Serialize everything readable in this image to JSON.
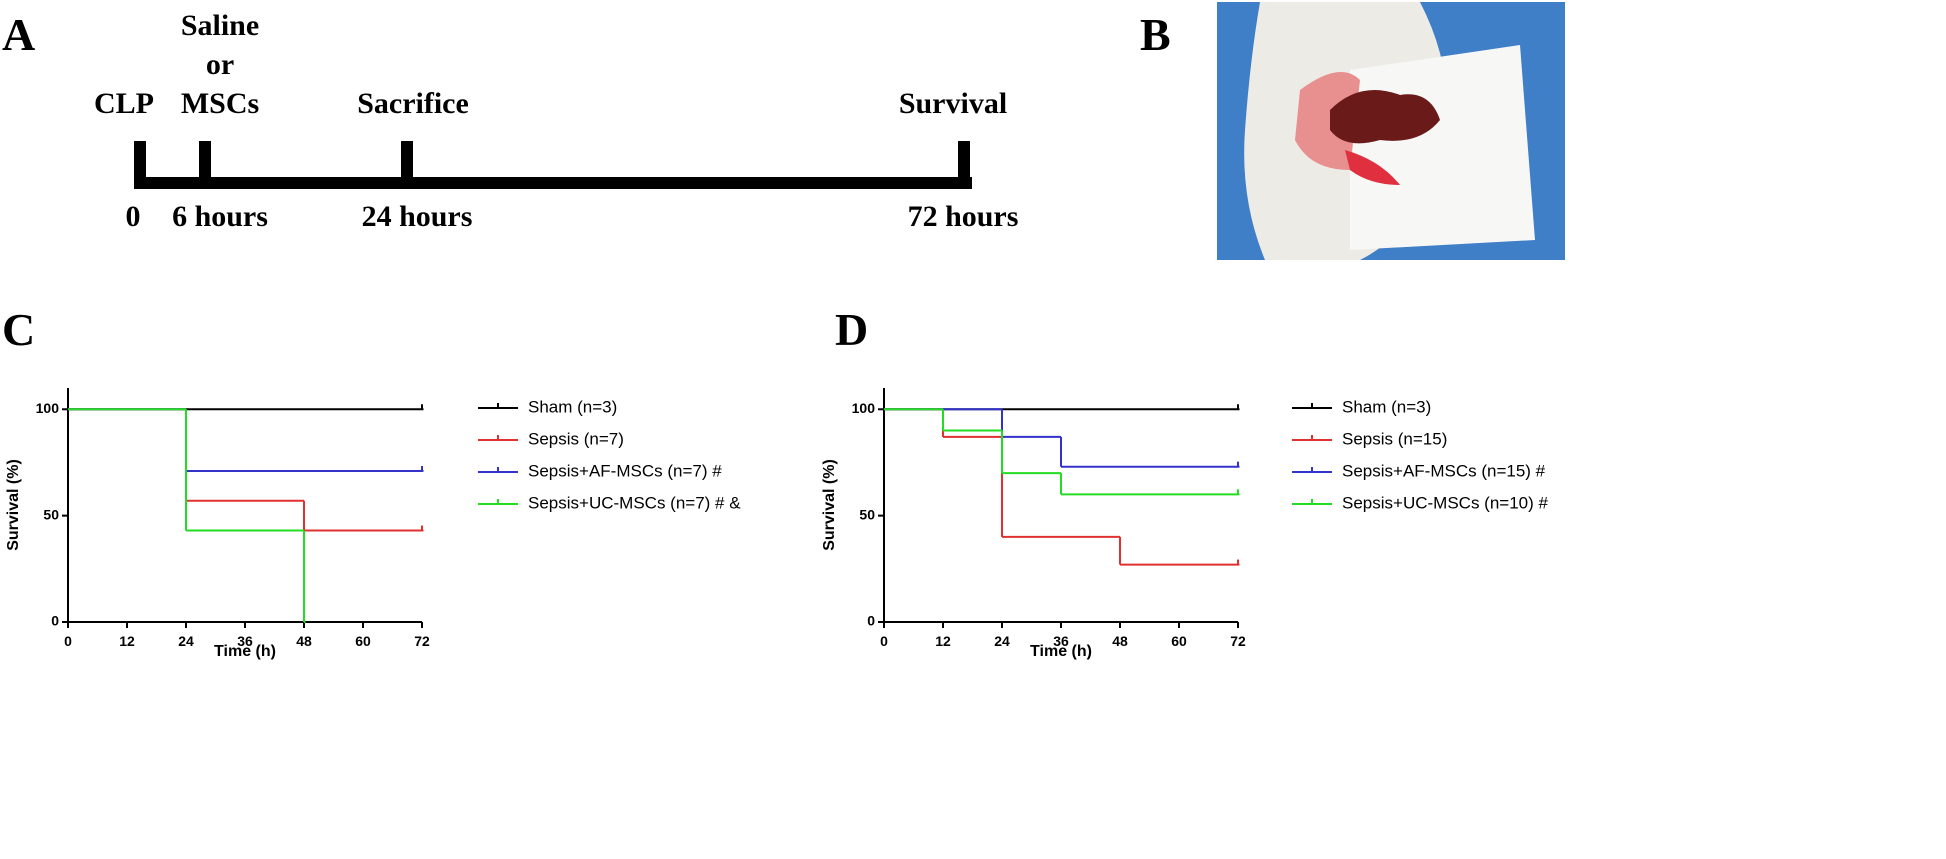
{
  "panel_labels": [
    "A",
    "B",
    "C",
    "D"
  ],
  "timeline": {
    "top_labels": [
      [
        "CLP"
      ],
      [
        "Saline",
        "or",
        "MSCs"
      ],
      [
        "Sacrifice"
      ],
      [
        "Survival"
      ]
    ],
    "bottom_labels": [
      "0",
      "6 hours",
      "24 hours",
      "72 hours"
    ]
  },
  "chart_data": [
    {
      "type": "step",
      "xlabel": "Time (h)",
      "ylabel": "Survival (%)",
      "xlim": [
        0,
        72
      ],
      "xticks": [
        0,
        12,
        24,
        36,
        48,
        60,
        72
      ],
      "ylim": [
        0,
        110
      ],
      "yticks": [
        0,
        50,
        100
      ],
      "series": [
        {
          "name": "Sham (n=3)",
          "color": "#000000",
          "x": [
            0,
            72
          ],
          "values": [
            100,
            100
          ]
        },
        {
          "name": "Sepsis (n=7)",
          "color": "#e03030",
          "x": [
            0,
            24,
            48,
            72
          ],
          "values": [
            100,
            57,
            43,
            43
          ]
        },
        {
          "name": "Sepsis+AF-MSCs (n=7)  #",
          "color": "#3333cc",
          "x": [
            0,
            24,
            72
          ],
          "values": [
            100,
            71,
            71
          ]
        },
        {
          "name": "Sepsis+UC-MSCs (n=7)  # &",
          "color": "#22dd22",
          "x": [
            0,
            24,
            48
          ],
          "values": [
            100,
            43,
            0
          ]
        }
      ]
    },
    {
      "type": "step",
      "xlabel": "Time (h)",
      "ylabel": "Survival (%)",
      "xlim": [
        0,
        72
      ],
      "xticks": [
        0,
        12,
        24,
        36,
        48,
        60,
        72
      ],
      "ylim": [
        0,
        110
      ],
      "yticks": [
        0,
        50,
        100
      ],
      "series": [
        {
          "name": "Sham (n=3)",
          "color": "#000000",
          "x": [
            0,
            72
          ],
          "values": [
            100,
            100
          ]
        },
        {
          "name": "Sepsis (n=15)",
          "color": "#e03030",
          "x": [
            0,
            12,
            24,
            48,
            72
          ],
          "values": [
            100,
            87,
            40,
            27,
            27
          ]
        },
        {
          "name": "Sepsis+AF-MSCs (n=15) #",
          "color": "#3333cc",
          "x": [
            0,
            24,
            36,
            72
          ],
          "values": [
            100,
            87,
            73,
            73
          ]
        },
        {
          "name": "Sepsis+UC-MSCs (n=10) #",
          "color": "#22dd22",
          "x": [
            0,
            12,
            24,
            36,
            72
          ],
          "values": [
            100,
            90,
            70,
            60,
            60
          ]
        }
      ]
    }
  ]
}
